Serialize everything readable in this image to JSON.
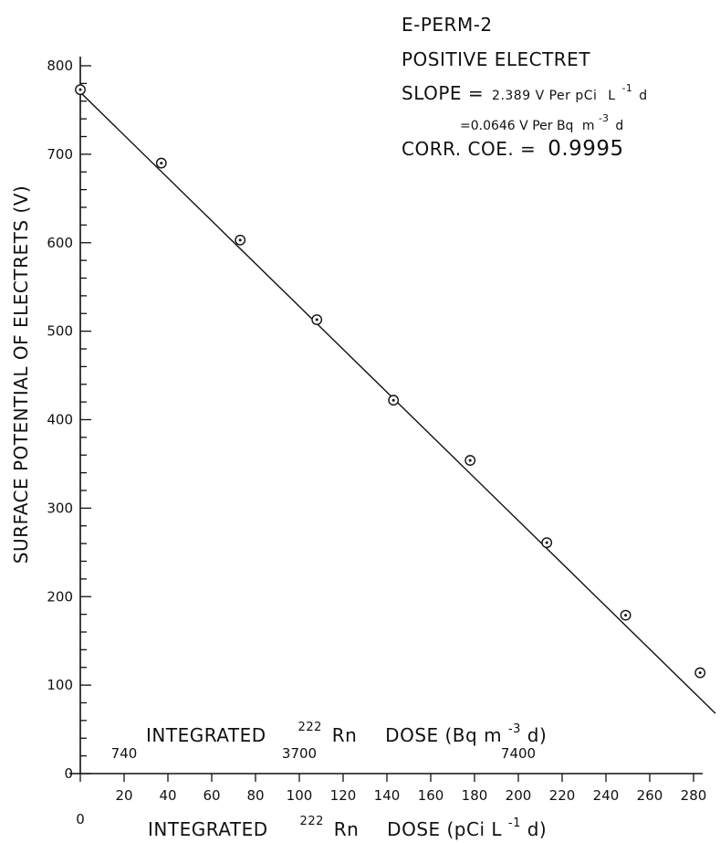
{
  "chart_data": {
    "type": "scatter",
    "title": "",
    "xlabel": {
      "prefix": "INTEGRATED",
      "sup": "222",
      "element": "Rn",
      "rest": "DOSE (pCi",
      "unit_base": "L",
      "unit_sup": "-1",
      "unit_tail": "d)"
    },
    "ylabel": "SURFACE POTENTIAL OF ELECTRETS (V)",
    "secondary_xlabel": {
      "prefix": "INTEGRATED",
      "sup": "222",
      "element": "Rn",
      "rest": "DOSE (Bq",
      "unit_base": "m",
      "unit_sup": "-3",
      "unit_tail": "d)"
    },
    "xlim": [
      0,
      290
    ],
    "ylim": [
      0,
      800
    ],
    "x_ticks": [
      0,
      20,
      40,
      60,
      80,
      100,
      120,
      140,
      160,
      180,
      200,
      220,
      240,
      260,
      280
    ],
    "y_ticks": [
      0,
      100,
      200,
      300,
      400,
      500,
      600,
      700,
      800
    ],
    "secondary_x_ticks": [
      {
        "at": 20,
        "label": "740"
      },
      {
        "at": 100,
        "label": "3700"
      },
      {
        "at": 200,
        "label": "7400"
      }
    ],
    "series": [
      {
        "x": [
          0,
          37,
          73,
          108,
          143,
          178,
          213,
          249,
          283
        ],
        "y": [
          773,
          690,
          603,
          513,
          422,
          354,
          261,
          179,
          114
        ]
      }
    ],
    "fit_line": {
      "x": [
        0,
        290
      ],
      "y": [
        770,
        68
      ]
    },
    "annotations": {
      "line1": "E-PERM-2",
      "line2": "POSITIVE ELECTRET",
      "slope_label": "SLOPE =",
      "slope_value": "2.389 V Per pCi",
      "slope_unit_base": "L",
      "slope_unit_sup": "-1",
      "slope_unit_tail": "d",
      "slope2_prefix": "=0.0646 V Per Bq",
      "slope2_unit_base": "m",
      "slope2_unit_sup": "-3",
      "slope2_unit_tail": "d",
      "corr_label": "CORR. COE. =",
      "corr_value": "0.9995"
    },
    "grid": false,
    "legend": "none"
  },
  "colors": {
    "ink": "#111111",
    "background": "#ffffff"
  }
}
